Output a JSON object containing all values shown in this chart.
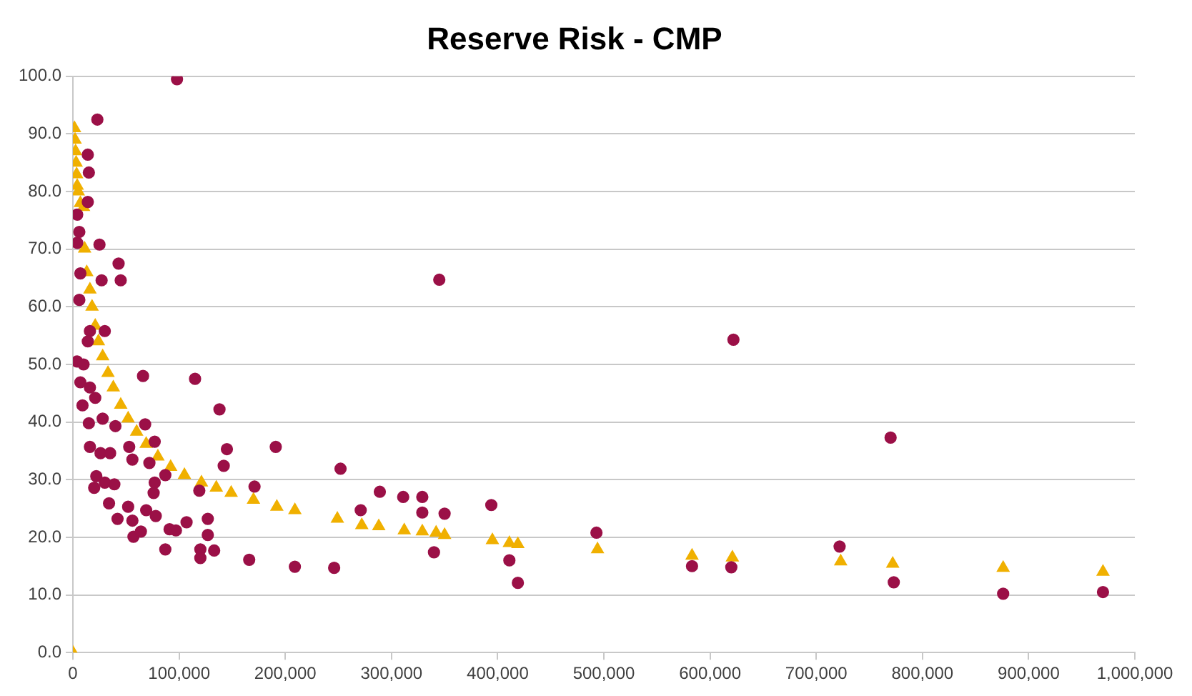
{
  "chart_data": {
    "type": "scatter",
    "title": "Reserve Risk - CMP",
    "grid": "y",
    "legend": false,
    "xlim": [
      0,
      1000000
    ],
    "ylim": [
      0,
      100
    ],
    "xticks": [
      {
        "value": 0,
        "label": "0"
      },
      {
        "value": 100000,
        "label": "100,000"
      },
      {
        "value": 200000,
        "label": "200,000"
      },
      {
        "value": 300000,
        "label": "300,000"
      },
      {
        "value": 400000,
        "label": "400,000"
      },
      {
        "value": 500000,
        "label": "500,000"
      },
      {
        "value": 600000,
        "label": "600,000"
      },
      {
        "value": 700000,
        "label": "700,000"
      },
      {
        "value": 800000,
        "label": "800,000"
      },
      {
        "value": 900000,
        "label": "900,000"
      },
      {
        "value": 1000000,
        "label": "1,000,000"
      }
    ],
    "yticks": [
      {
        "value": 0,
        "label": "0.0"
      },
      {
        "value": 10,
        "label": "10.0"
      },
      {
        "value": 20,
        "label": "20.0"
      },
      {
        "value": 30,
        "label": "30.0"
      },
      {
        "value": 40,
        "label": "40.0"
      },
      {
        "value": 50,
        "label": "50.0"
      },
      {
        "value": 60,
        "label": "60.0"
      },
      {
        "value": 70,
        "label": "70.0"
      },
      {
        "value": 80,
        "label": "80.0"
      },
      {
        "value": 90,
        "label": "90.0"
      },
      {
        "value": 100,
        "label": "100.0"
      }
    ],
    "series": [
      {
        "color": "#9b1047",
        "marker": "circle",
        "x": [
          98000,
          23000,
          14000,
          15000,
          14000,
          25000,
          43000,
          27000,
          45000,
          4000,
          7000,
          6000,
          4000,
          6000,
          16000,
          30000,
          14000,
          66000,
          115000,
          138000,
          4000,
          10000,
          7000,
          16000,
          9000,
          21000,
          15000,
          28000,
          40000,
          68000,
          16000,
          26000,
          35000,
          53000,
          56000,
          72000,
          77000,
          145000,
          142000,
          191000,
          252000,
          22000,
          30000,
          39000,
          20000,
          87000,
          77000,
          76000,
          119000,
          171000,
          289000,
          311000,
          329000,
          329000,
          271000,
          34000,
          52000,
          69000,
          78000,
          42000,
          56000,
          127000,
          91000,
          97000,
          107000,
          57000,
          64000,
          127000,
          87000,
          120000,
          120000,
          133000,
          166000,
          209000,
          246000,
          340000,
          345000,
          350000,
          394000,
          411000,
          419000,
          493000,
          583000,
          620000,
          622000,
          722000,
          770000,
          773000,
          876000,
          970000
        ],
        "values": [
          99.5,
          92.5,
          86.4,
          83.3,
          78.2,
          70.8,
          67.5,
          64.6,
          64.6,
          71.1,
          65.8,
          61.2,
          76,
          73,
          55.8,
          55.8,
          54,
          48,
          47.5,
          42.2,
          50.5,
          50,
          46.9,
          46,
          42.9,
          44.2,
          39.8,
          40.6,
          39.3,
          39.6,
          35.7,
          34.6,
          34.6,
          35.7,
          33.5,
          32.9,
          36.6,
          35.3,
          32.4,
          35.7,
          31.9,
          30.6,
          29.5,
          29.2,
          28.6,
          30.8,
          29.5,
          27.7,
          28.1,
          28.8,
          27.9,
          27,
          27,
          24.3,
          24.7,
          25.9,
          25.3,
          24.7,
          23.7,
          23.2,
          22.9,
          23.2,
          21.4,
          21.2,
          22.6,
          20.1,
          21,
          20.4,
          17.9,
          17.9,
          16.4,
          17.7,
          16.1,
          14.9,
          14.7,
          17.4,
          64.7,
          24.1,
          25.6,
          16,
          12.1,
          20.8,
          15,
          14.8,
          54.3,
          18.4,
          37.3,
          12.2,
          10.2,
          10.5
        ]
      },
      {
        "color": "#f0b000",
        "marker": "triangle",
        "x": [
          0,
          1500,
          2000,
          2500,
          3000,
          3500,
          4000,
          5000,
          7000,
          10000,
          11000,
          13000,
          16000,
          18000,
          21000,
          24000,
          28000,
          33000,
          38000,
          45000,
          52000,
          60000,
          69000,
          80000,
          92000,
          105000,
          121000,
          135000,
          149000,
          170000,
          192000,
          209000,
          249000,
          272000,
          288000,
          312000,
          329000,
          342000,
          350000,
          395000,
          411000,
          419000,
          494000,
          583000,
          621000,
          723000,
          772000,
          876000,
          970000
        ],
        "values": [
          0,
          91,
          89,
          87,
          85,
          83,
          81,
          80,
          78,
          77.3,
          70.1,
          66,
          63,
          60,
          56.7,
          54,
          51.4,
          48.5,
          46,
          43,
          40.6,
          38.3,
          36.2,
          34,
          32.2,
          30.8,
          29.5,
          28.6,
          27.7,
          26.5,
          25.3,
          24.7,
          23.2,
          22.1,
          21.9,
          21.2,
          21,
          20.8,
          20.4,
          19.5,
          19,
          18.8,
          17.9,
          16.8,
          16.5,
          15.8,
          15.4,
          14.7,
          14
        ]
      }
    ]
  }
}
